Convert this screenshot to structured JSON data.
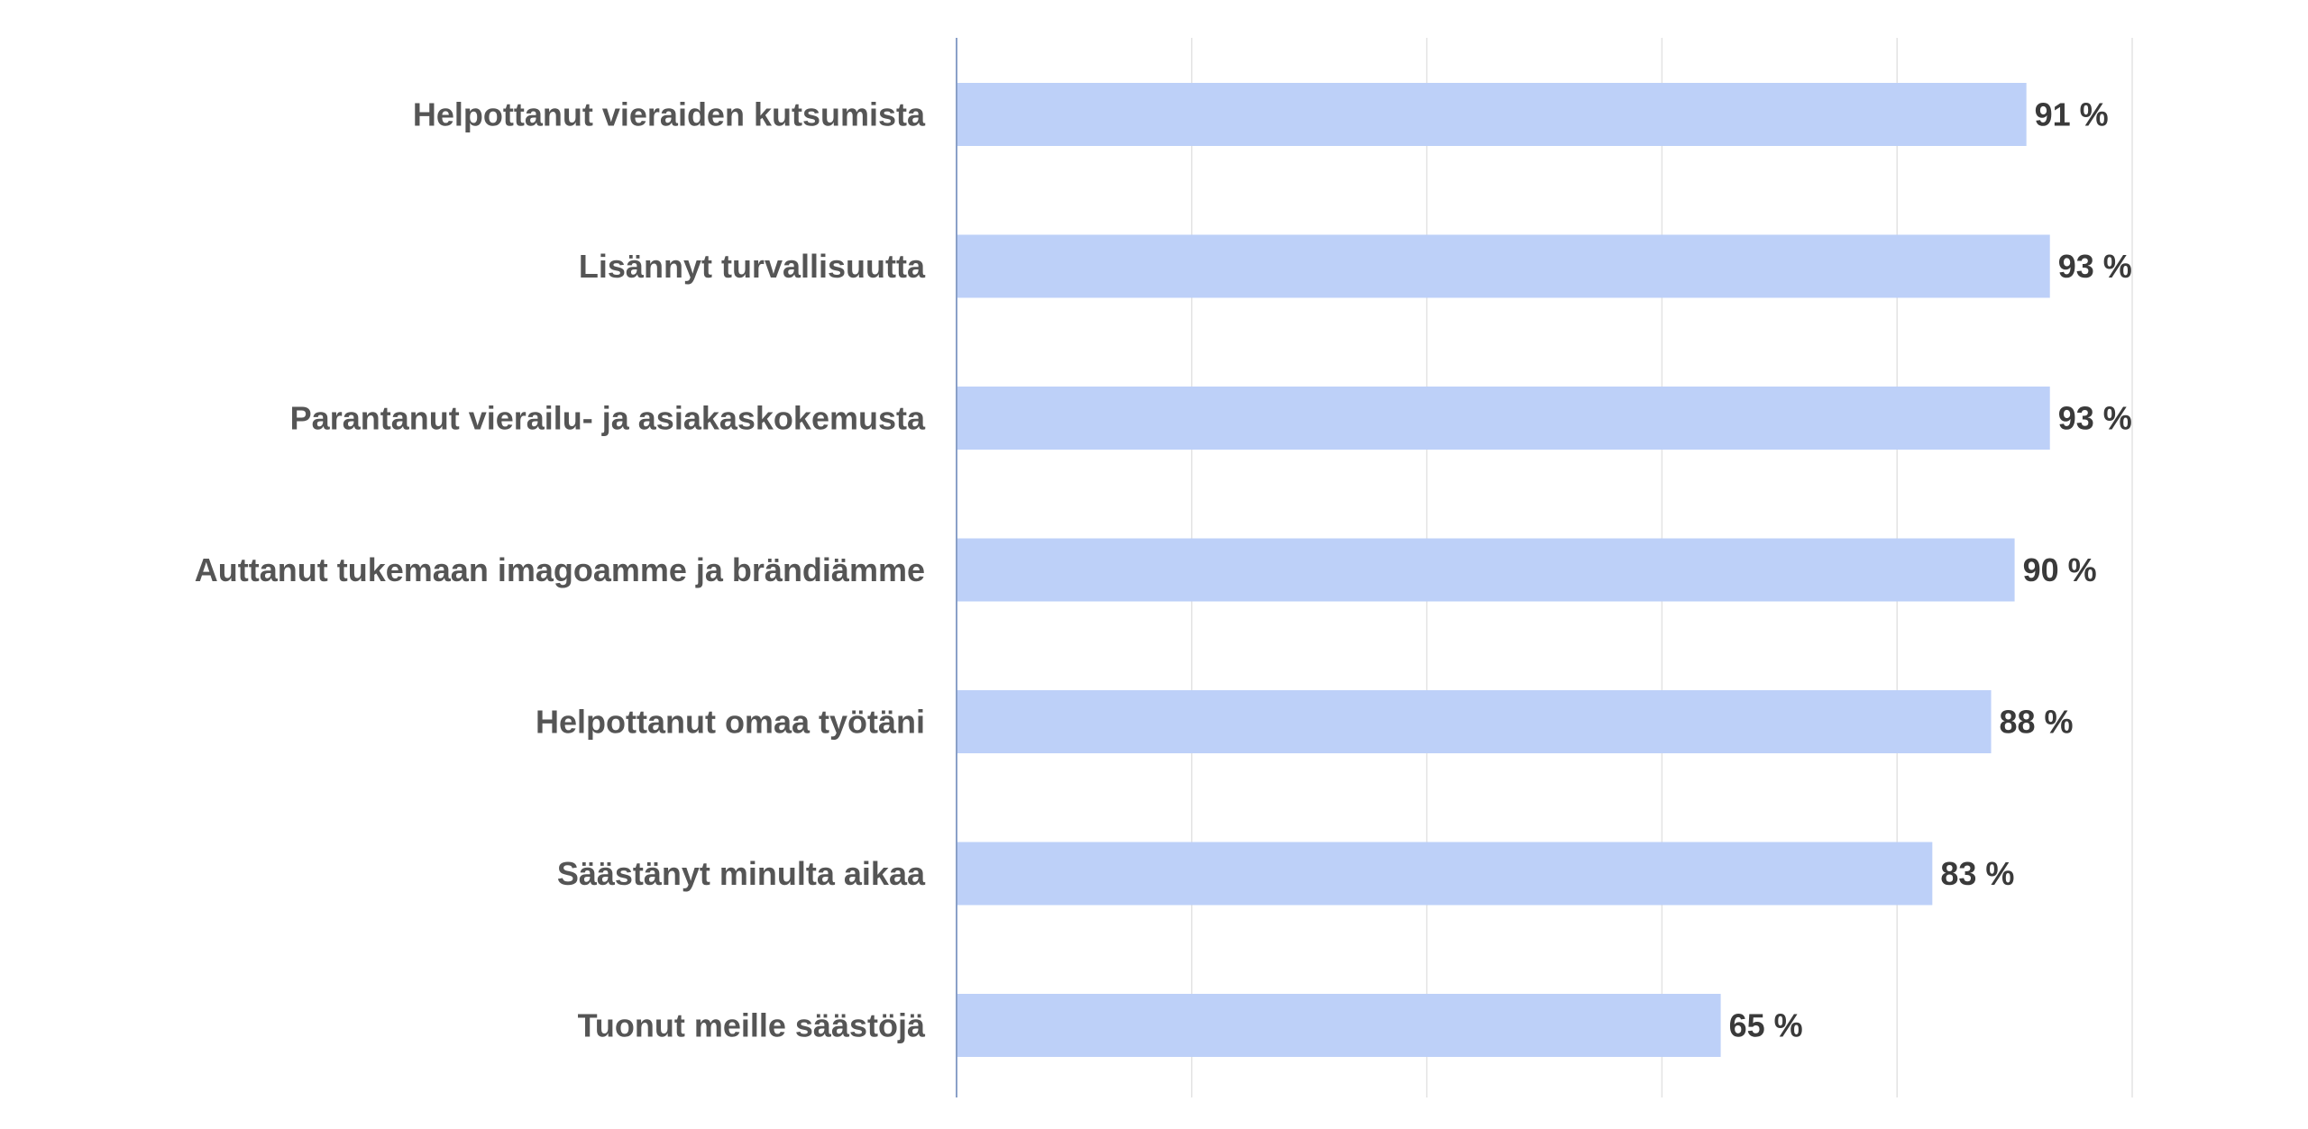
{
  "chart_data": {
    "type": "bar",
    "orientation": "horizontal",
    "categories": [
      "Helpottanut vieraiden kutsumista",
      "Lisännyt turvallisuutta",
      "Parantanut vierailu- ja asiakaskokemusta",
      "Auttanut tukemaan imagoamme ja brändiämme",
      "Helpottanut omaa työtäni",
      "Säästänyt minulta aikaa",
      "Tuonut meille säästöjä"
    ],
    "values": [
      91,
      93,
      93,
      90,
      88,
      83,
      65
    ],
    "value_labels": [
      "91 %",
      "93 %",
      "93 %",
      "90 %",
      "88 %",
      "83 %",
      "65 %"
    ],
    "xlim": [
      0,
      100
    ],
    "grid": true,
    "legend": "none",
    "colors": {
      "bar": "#bdd0f8",
      "axis": "#8aa0c8",
      "grid": "#e3e3e3",
      "category_text": "#555555",
      "value_text": "#3a3a3a"
    }
  }
}
